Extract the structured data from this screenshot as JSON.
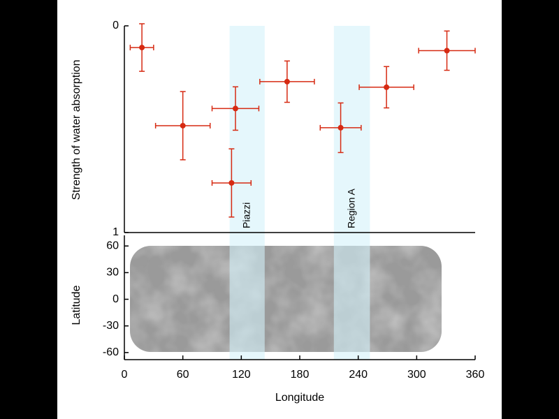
{
  "chart_data": {
    "type": "scatter",
    "ylabel": "Strength of water absorption",
    "xlabel": "Longitude",
    "x": [
      18,
      60,
      114,
      110,
      167,
      222,
      269,
      331
    ],
    "values": [
      0.105,
      0.483,
      0.4,
      0.76,
      0.27,
      0.493,
      0.297,
      0.12
    ],
    "xerr": [
      12,
      28,
      24,
      20,
      28,
      21,
      28,
      29
    ],
    "yerr": [
      0.115,
      0.165,
      0.105,
      0.165,
      0.1,
      0.12,
      0.1,
      0.095
    ],
    "color": "#d62a12",
    "ylim": [
      1,
      0
    ],
    "yticks": [
      0,
      1
    ],
    "xlim": [
      0,
      360
    ],
    "xticks": [
      0,
      60,
      120,
      180,
      240,
      300,
      360
    ],
    "bands": [
      {
        "label": "Piazzi",
        "range": [
          108,
          144
        ]
      },
      {
        "label": "Region A",
        "range": [
          215,
          252
        ]
      }
    ],
    "band_color": "#d3f1fa",
    "map": {
      "ylabel": "Latitude",
      "ylim": [
        -68,
        72
      ],
      "yticks": [
        60,
        30,
        0,
        -30,
        -60
      ]
    }
  }
}
